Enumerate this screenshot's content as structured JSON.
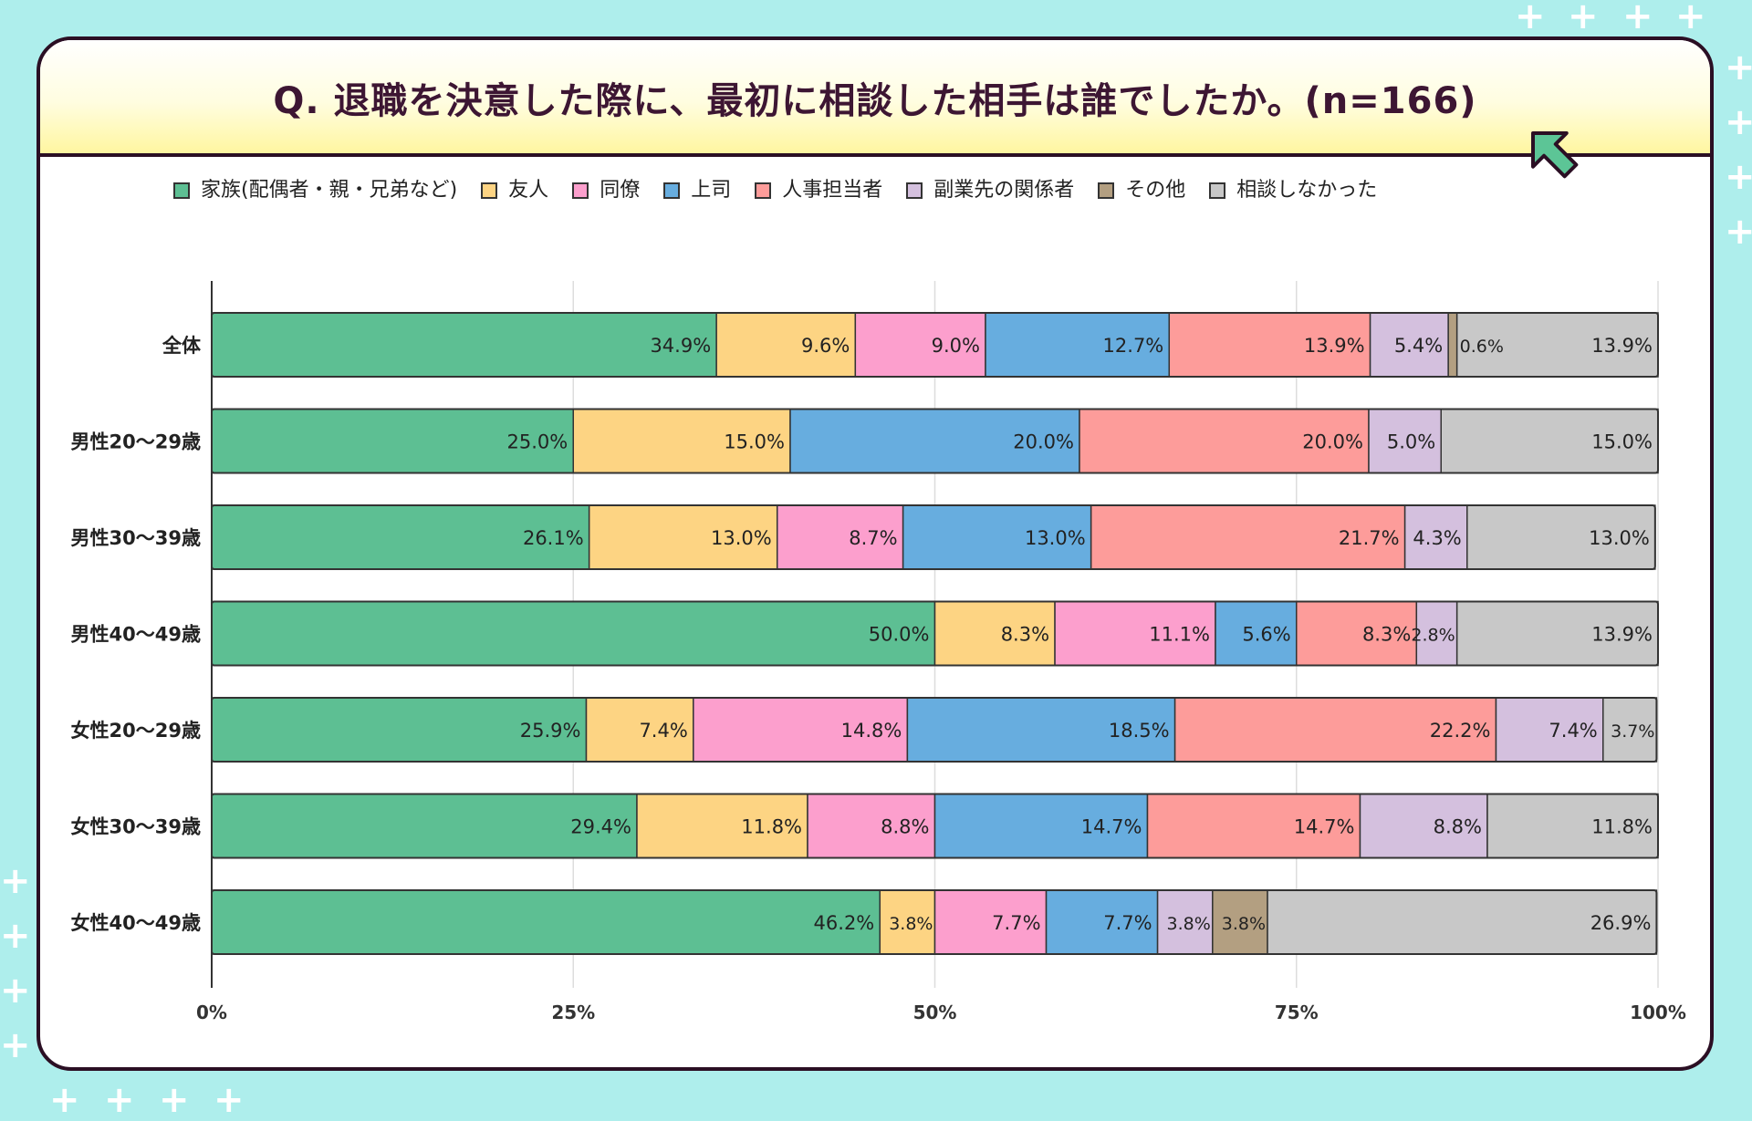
{
  "title": "Q. 退職を決意した際に、最初に相談した相手は誰でしたか。(n=166)",
  "colors": {
    "background": "#aeeeec",
    "card_border": "#2b0f24",
    "title_text": "#3d1633",
    "arrow": "#5cc596"
  },
  "chart_data": {
    "type": "bar",
    "orientation": "horizontal",
    "stacked": true,
    "title": "Q. 退職を決意した際に、最初に相談した相手は誰でしたか。(n=166)",
    "xlabel": "",
    "ylabel": "",
    "xlim": [
      0,
      100
    ],
    "x_ticks": [
      "0%",
      "25%",
      "50%",
      "75%",
      "100%"
    ],
    "grid": true,
    "legend_position": "top",
    "categories": [
      "全体",
      "男性20～29歳",
      "男性30～39歳",
      "男性40～49歳",
      "女性20～29歳",
      "女性30～39歳",
      "女性40～49歳"
    ],
    "series": [
      {
        "name": "家族(配偶者・親・兄弟など)",
        "color": "#5dbf93",
        "values": [
          34.9,
          25.0,
          26.1,
          50.0,
          25.9,
          29.4,
          46.2
        ]
      },
      {
        "name": "友人",
        "color": "#fdd483",
        "values": [
          9.6,
          15.0,
          13.0,
          8.3,
          7.4,
          11.8,
          3.8
        ]
      },
      {
        "name": "同僚",
        "color": "#fc9fcd",
        "values": [
          9.0,
          0,
          8.7,
          11.1,
          14.8,
          8.8,
          7.7
        ]
      },
      {
        "name": "上司",
        "color": "#67addf",
        "values": [
          12.7,
          20.0,
          13.0,
          5.6,
          18.5,
          14.7,
          7.7
        ]
      },
      {
        "name": "人事担当者",
        "color": "#fd9c9a",
        "values": [
          13.9,
          20.0,
          21.7,
          8.3,
          22.2,
          14.7,
          0
        ]
      },
      {
        "name": "副業先の関係者",
        "color": "#d4c0de",
        "values": [
          5.4,
          5.0,
          4.3,
          2.8,
          7.4,
          8.8,
          3.8
        ]
      },
      {
        "name": "その他",
        "color": "#b39f81",
        "values": [
          0.6,
          0,
          0,
          0,
          0,
          0,
          3.8
        ]
      },
      {
        "name": "相談しなかった",
        "color": "#c8c8c8",
        "values": [
          13.9,
          15.0,
          13.0,
          13.9,
          3.7,
          11.8,
          26.9
        ]
      }
    ]
  }
}
